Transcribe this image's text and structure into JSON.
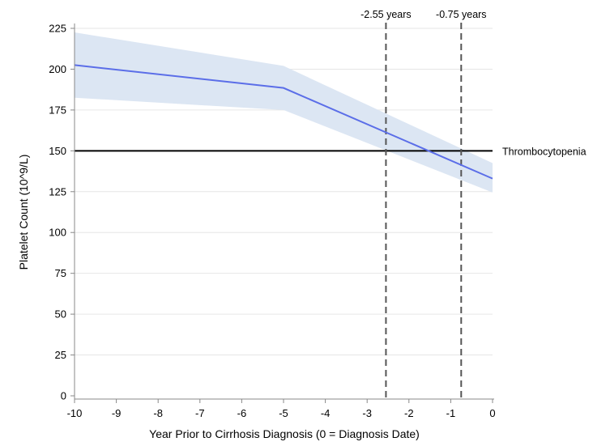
{
  "chart_data": {
    "type": "line",
    "title": "",
    "xlabel": "Year Prior to Cirrhosis Diagnosis (0 = Diagnosis Date)",
    "ylabel": "Platelet Count (10^9/L)",
    "xlim": [
      -10,
      0
    ],
    "ylim": [
      0,
      225
    ],
    "x_ticks": [
      -10,
      -9,
      -8,
      -7,
      -6,
      -5,
      -4,
      -3,
      -2,
      -1,
      0
    ],
    "y_ticks": [
      0,
      25,
      50,
      75,
      100,
      125,
      150,
      175,
      200,
      225
    ],
    "grid": "horizontal",
    "series": [
      {
        "x": [
          -10,
          -5,
          0
        ],
        "values": [
          202.5,
          188.5,
          133
        ],
        "ci_lower": [
          182.5,
          175,
          124.5
        ],
        "ci_upper": [
          222.5,
          202,
          142.5
        ],
        "line_color": "#5b6ee8",
        "band_color": "#dce6f3"
      }
    ],
    "reference_lines": [
      {
        "orientation": "horizontal",
        "value": 150,
        "label": "Thrombocytopenia",
        "style": "solid",
        "color": "#000000"
      },
      {
        "orientation": "vertical",
        "value": -2.55,
        "label": "-2.55 years",
        "style": "dashed",
        "color": "#555555"
      },
      {
        "orientation": "vertical",
        "value": -0.75,
        "label": "-0.75 years",
        "style": "dashed",
        "color": "#555555"
      }
    ]
  }
}
